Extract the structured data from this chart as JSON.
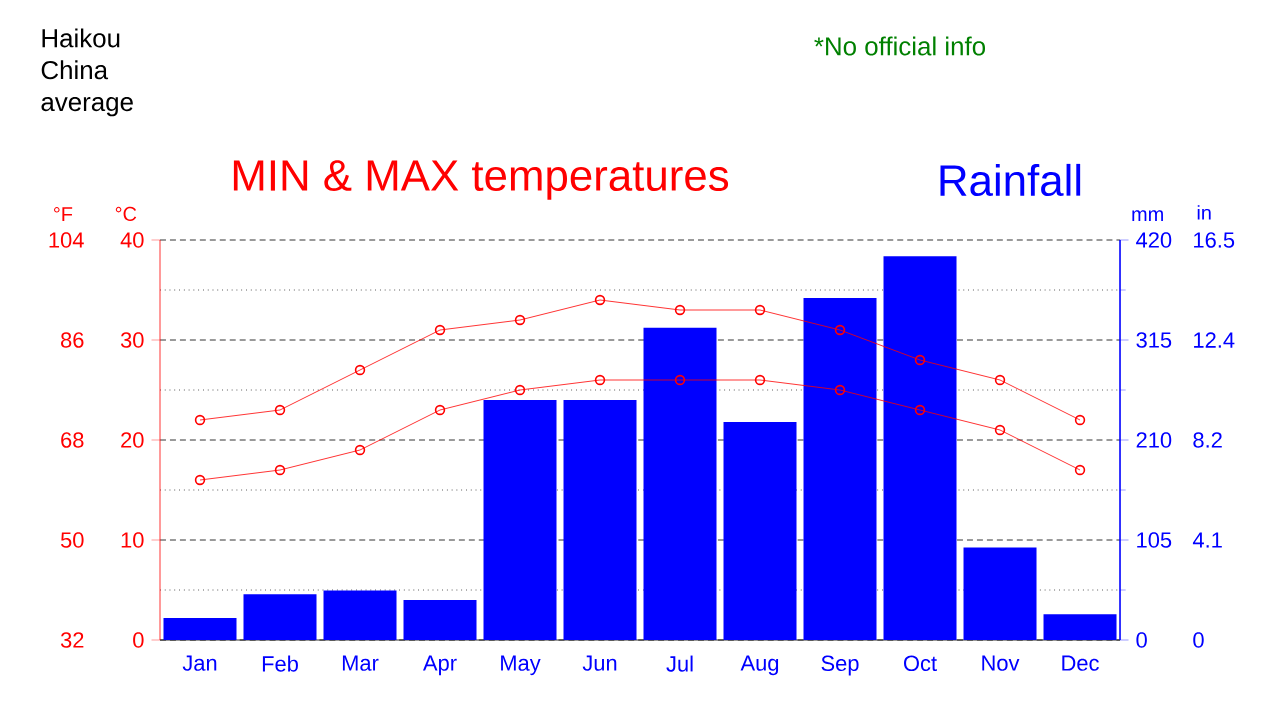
{
  "chart_data": {
    "type": "line",
    "title": "Haikou China average",
    "annotations": [
      "MIN & MAX temperatures",
      "Rainfall",
      "*No official info",
      "in",
      "0",
      "4.1",
      "8.2",
      "12.4",
      "16.5"
    ],
    "categories": [
      "Jan",
      "Feb",
      "Mar",
      "Apr",
      "May",
      "Jun",
      "Jul",
      "Aug",
      "Sep",
      "Oct",
      "Nov",
      "Dec"
    ],
    "series": [
      {
        "type": "bar",
        "axis": "y2",
        "color": "#0000ff",
        "values": [
          23,
          48,
          52,
          42,
          252,
          252,
          328,
          229,
          359,
          403,
          97,
          27
        ]
      },
      {
        "color": "#ff0000",
        "values": [
          22,
          23,
          27,
          31,
          32,
          34,
          33,
          33,
          31,
          28,
          26,
          22
        ]
      },
      {
        "color": "#ff0000",
        "values": [
          16,
          17,
          19,
          23,
          25,
          26,
          26,
          26,
          25,
          23,
          21,
          17
        ]
      }
    ],
    "ylabel": "°C",
    "ylim": [
      0,
      40
    ],
    "yticks": [
      0,
      10,
      20,
      30,
      40
    ],
    "y2label": "mm",
    "y2lim": [
      0,
      420
    ],
    "y2ticks": [
      0,
      105,
      210,
      315,
      420
    ],
    "y3label": "°F",
    "y3lim": [
      32,
      104
    ],
    "y3ticks": [
      32,
      50,
      68,
      86,
      104
    ],
    "grid": "y",
    "marker": "circle",
    "line_style": "solid"
  }
}
